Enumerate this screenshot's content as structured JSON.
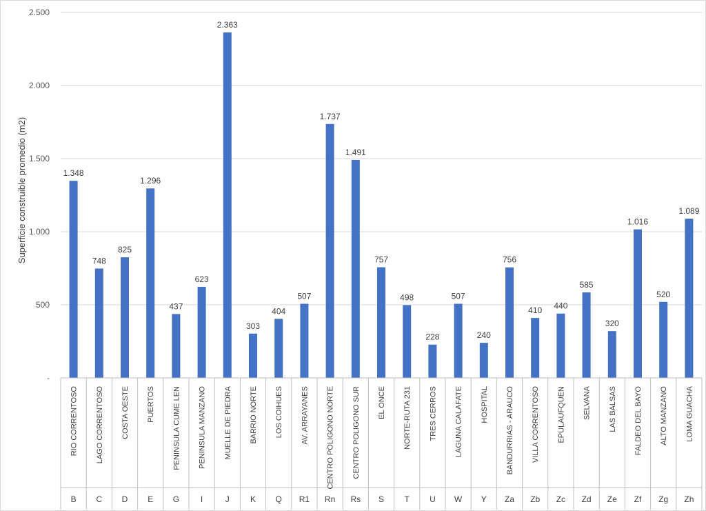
{
  "chart_data": {
    "type": "bar",
    "ylabel": "Superficie construible promedio (m2)",
    "ylim": [
      0,
      2500
    ],
    "yticks": [
      {
        "value": 0,
        "label": "-"
      },
      {
        "value": 500,
        "label": "500"
      },
      {
        "value": 1000,
        "label": "1.000"
      },
      {
        "value": 1500,
        "label": "1.500"
      },
      {
        "value": 2000,
        "label": "2.000"
      },
      {
        "value": 2500,
        "label": "2.500"
      }
    ],
    "grid": true,
    "bar_color": "#4472C4",
    "categories": [
      {
        "name": "RIO CORRENTOSO",
        "code": "B"
      },
      {
        "name": "LAGO CORRENTOSO",
        "code": "C"
      },
      {
        "name": "COSTA OESTE",
        "code": "D"
      },
      {
        "name": "PUERTOS",
        "code": "E"
      },
      {
        "name": "PENINSULA CUME LEN",
        "code": "G"
      },
      {
        "name": "PENINSULA MANZANO",
        "code": "I"
      },
      {
        "name": "MUELLE DE PIEDRA",
        "code": "J"
      },
      {
        "name": "BARRIO NORTE",
        "code": "K"
      },
      {
        "name": "LOS COIHUES",
        "code": "Q"
      },
      {
        "name": "AV. ARRAYANES",
        "code": "R1"
      },
      {
        "name": "CENTRO POLIGONO NORTE",
        "code": "Rn"
      },
      {
        "name": "CENTRO POLIGONO SUR",
        "code": "Rs"
      },
      {
        "name": "EL ONCE",
        "code": "S"
      },
      {
        "name": "NORTE-RUTA 231",
        "code": "T"
      },
      {
        "name": "TRES CERROS",
        "code": "U"
      },
      {
        "name": "LAGUNA CALAFATE",
        "code": "W"
      },
      {
        "name": "HOSPITAL",
        "code": "Y"
      },
      {
        "name": "BANDURRIAS - ARAUCO",
        "code": "Za"
      },
      {
        "name": "VILLA CORRENTOSO",
        "code": "Zb"
      },
      {
        "name": "EPULAUFQUEN",
        "code": "Zc"
      },
      {
        "name": "SELVANA",
        "code": "Zd"
      },
      {
        "name": "LAS BALSAS",
        "code": "Ze"
      },
      {
        "name": "FALDEO DEL BAYO",
        "code": "Zf"
      },
      {
        "name": "ALTO MANZANO",
        "code": "Zg"
      },
      {
        "name": "LOMA GUACHA",
        "code": "Zh"
      }
    ],
    "values": [
      1348,
      748,
      825,
      1296,
      437,
      623,
      2363,
      303,
      404,
      507,
      1737,
      1491,
      757,
      498,
      228,
      507,
      240,
      756,
      410,
      440,
      585,
      320,
      1016,
      520,
      1089
    ],
    "value_labels": [
      "1.348",
      "748",
      "825",
      "1.296",
      "437",
      "623",
      "2.363",
      "303",
      "404",
      "507",
      "1.737",
      "1.491",
      "757",
      "498",
      "228",
      "507",
      "240",
      "756",
      "410",
      "440",
      "585",
      "320",
      "1.016",
      "520",
      "1.089"
    ]
  }
}
